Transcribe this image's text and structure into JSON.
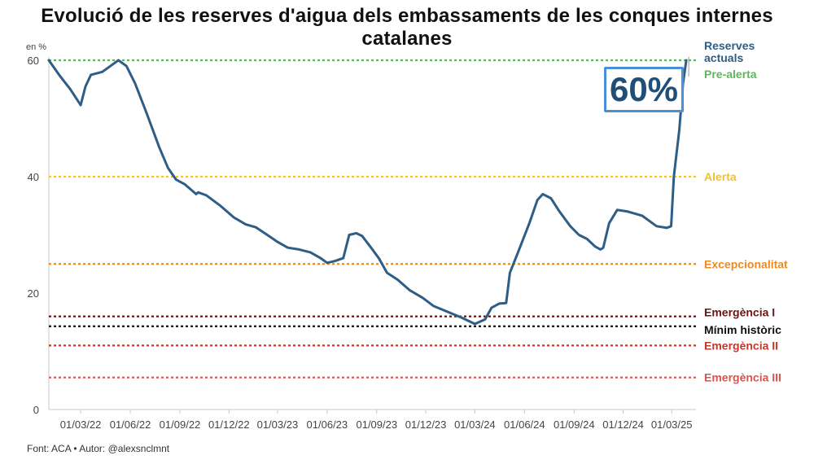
{
  "title": "Evolució de les reserves d'aigua dels embassaments de les conques internes catalanes",
  "unit_label": "en %",
  "source": "Font: ACA • Autor: @alexsnclmnt",
  "current_value_badge": "60%",
  "colors": {
    "series": "#2e5d86",
    "pre_alerta": "#5cb85c",
    "alerta": "#f0c330",
    "excepcionalitat": "#ee8a22",
    "emergencia_1": "#6b1414",
    "minim_historic": "#111111",
    "emergencia_2": "#c0392b",
    "emergencia_3": "#d9534f",
    "badge_border": "#4a90d9"
  },
  "chart_data": {
    "type": "line",
    "title": "Evolució de les reserves d'aigua dels embassaments de les conques internes catalanes",
    "ylabel": "en %",
    "ylim": [
      0,
      60
    ],
    "yticks": [
      0,
      20,
      40,
      60
    ],
    "xlim": [
      "2022-01-01",
      "2025-04-15"
    ],
    "xticks": [
      {
        "date": "2022-03-01",
        "label": "01/03/22"
      },
      {
        "date": "2022-06-01",
        "label": "01/06/22"
      },
      {
        "date": "2022-09-01",
        "label": "01/09/22"
      },
      {
        "date": "2022-12-01",
        "label": "01/12/22"
      },
      {
        "date": "2023-03-01",
        "label": "01/03/23"
      },
      {
        "date": "2023-06-01",
        "label": "01/06/23"
      },
      {
        "date": "2023-09-01",
        "label": "01/09/23"
      },
      {
        "date": "2023-12-01",
        "label": "01/12/23"
      },
      {
        "date": "2024-03-01",
        "label": "01/03/24"
      },
      {
        "date": "2024-06-01",
        "label": "01/06/24"
      },
      {
        "date": "2024-09-01",
        "label": "01/09/24"
      },
      {
        "date": "2024-12-01",
        "label": "01/12/24"
      },
      {
        "date": "2025-03-01",
        "label": "01/03/25"
      }
    ],
    "grid": false,
    "series": [
      {
        "name": "Reserves actuals",
        "points": [
          {
            "x": "2022-01-01",
            "y": 60
          },
          {
            "x": "2022-01-20",
            "y": 57.5
          },
          {
            "x": "2022-02-10",
            "y": 55
          },
          {
            "x": "2022-03-01",
            "y": 52.3
          },
          {
            "x": "2022-03-10",
            "y": 55.5
          },
          {
            "x": "2022-03-20",
            "y": 57.5
          },
          {
            "x": "2022-04-10",
            "y": 58
          },
          {
            "x": "2022-04-25",
            "y": 59
          },
          {
            "x": "2022-05-10",
            "y": 60
          },
          {
            "x": "2022-05-25",
            "y": 59
          },
          {
            "x": "2022-06-10",
            "y": 56
          },
          {
            "x": "2022-07-01",
            "y": 51
          },
          {
            "x": "2022-07-25",
            "y": 45
          },
          {
            "x": "2022-08-10",
            "y": 41.5
          },
          {
            "x": "2022-08-25",
            "y": 39.5
          },
          {
            "x": "2022-09-10",
            "y": 38.7
          },
          {
            "x": "2022-10-01",
            "y": 37
          },
          {
            "x": "2022-10-05",
            "y": 37.3
          },
          {
            "x": "2022-10-20",
            "y": 36.8
          },
          {
            "x": "2022-11-15",
            "y": 35
          },
          {
            "x": "2022-12-10",
            "y": 33
          },
          {
            "x": "2023-01-01",
            "y": 31.8
          },
          {
            "x": "2023-01-20",
            "y": 31.3
          },
          {
            "x": "2023-02-10",
            "y": 30
          },
          {
            "x": "2023-03-01",
            "y": 28.8
          },
          {
            "x": "2023-03-20",
            "y": 27.8
          },
          {
            "x": "2023-04-10",
            "y": 27.5
          },
          {
            "x": "2023-05-01",
            "y": 27
          },
          {
            "x": "2023-05-20",
            "y": 26
          },
          {
            "x": "2023-06-01",
            "y": 25.2
          },
          {
            "x": "2023-06-15",
            "y": 25.5
          },
          {
            "x": "2023-07-01",
            "y": 26
          },
          {
            "x": "2023-07-12",
            "y": 30
          },
          {
            "x": "2023-07-25",
            "y": 30.3
          },
          {
            "x": "2023-08-05",
            "y": 29.8
          },
          {
            "x": "2023-08-20",
            "y": 28
          },
          {
            "x": "2023-09-05",
            "y": 26
          },
          {
            "x": "2023-09-20",
            "y": 23.5
          },
          {
            "x": "2023-10-10",
            "y": 22.3
          },
          {
            "x": "2023-11-01",
            "y": 20.5
          },
          {
            "x": "2023-11-25",
            "y": 19.2
          },
          {
            "x": "2023-12-15",
            "y": 17.8
          },
          {
            "x": "2024-01-10",
            "y": 16.8
          },
          {
            "x": "2024-02-05",
            "y": 15.8
          },
          {
            "x": "2024-03-01",
            "y": 14.7
          },
          {
            "x": "2024-03-20",
            "y": 15.5
          },
          {
            "x": "2024-04-01",
            "y": 17.5
          },
          {
            "x": "2024-04-15",
            "y": 18.2
          },
          {
            "x": "2024-04-28",
            "y": 18.3
          },
          {
            "x": "2024-05-05",
            "y": 23.5
          },
          {
            "x": "2024-05-20",
            "y": 27
          },
          {
            "x": "2024-06-10",
            "y": 32
          },
          {
            "x": "2024-06-25",
            "y": 36
          },
          {
            "x": "2024-07-05",
            "y": 37
          },
          {
            "x": "2024-07-20",
            "y": 36.3
          },
          {
            "x": "2024-08-05",
            "y": 34
          },
          {
            "x": "2024-08-25",
            "y": 31.5
          },
          {
            "x": "2024-09-10",
            "y": 30
          },
          {
            "x": "2024-09-25",
            "y": 29.3
          },
          {
            "x": "2024-10-10",
            "y": 28
          },
          {
            "x": "2024-10-20",
            "y": 27.5
          },
          {
            "x": "2024-10-25",
            "y": 27.8
          },
          {
            "x": "2024-11-05",
            "y": 32
          },
          {
            "x": "2024-11-20",
            "y": 34.3
          },
          {
            "x": "2024-12-10",
            "y": 34
          },
          {
            "x": "2025-01-05",
            "y": 33.3
          },
          {
            "x": "2025-02-01",
            "y": 31.5
          },
          {
            "x": "2025-02-20",
            "y": 31.2
          },
          {
            "x": "2025-02-28",
            "y": 31.5
          },
          {
            "x": "2025-03-05",
            "y": 40
          },
          {
            "x": "2025-03-15",
            "y": 48
          },
          {
            "x": "2025-03-22",
            "y": 56
          },
          {
            "x": "2025-03-28",
            "y": 60
          }
        ]
      }
    ],
    "reference_lines": [
      {
        "label": "Pre-alerta",
        "value": 60
      },
      {
        "label": "Alerta",
        "value": 40
      },
      {
        "label": "Excepcionalitat",
        "value": 25
      },
      {
        "label": "Emergència I",
        "value": 16
      },
      {
        "label": "Mínim històric",
        "value": 14.3
      },
      {
        "label": "Emergència II",
        "value": 11
      },
      {
        "label": "Emergència III",
        "value": 5.5
      }
    ],
    "annotations": [
      {
        "label": "Reserves actuals",
        "value": 60
      }
    ]
  }
}
